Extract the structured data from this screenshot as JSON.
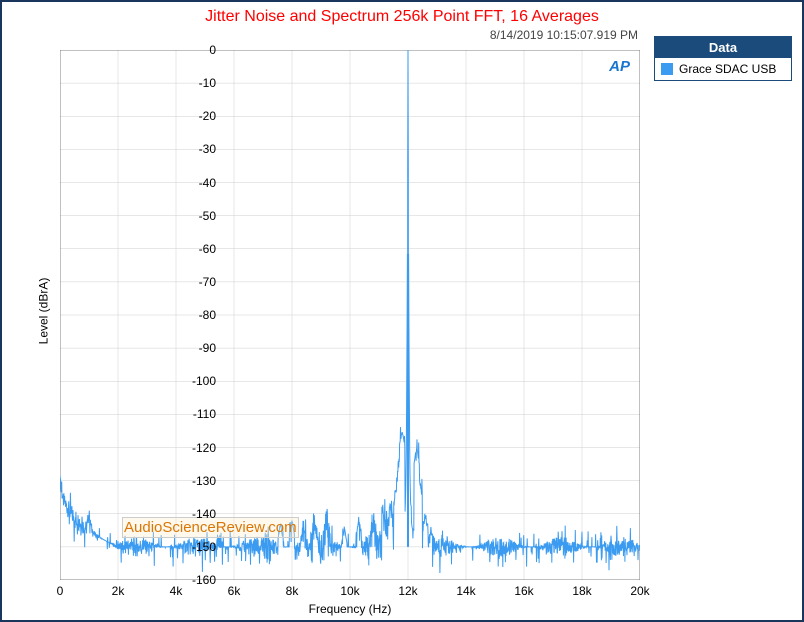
{
  "title": "Jitter Noise and Spectrum 256k Point FFT, 16 Averages",
  "timestamp": "8/14/2019 10:15:07.919 PM",
  "watermark": "AudioScienceReview.com",
  "ap_logo": "AP",
  "legend": {
    "header": "Data",
    "item": "Grace SDAC USB"
  },
  "axes": {
    "x_label": "Frequency (Hz)",
    "y_label": "Level (dBrA)"
  },
  "chart": {
    "type": "line",
    "xlim": [
      0,
      20000
    ],
    "xtick_step_hz": 2000,
    "ylim": [
      -160,
      0
    ],
    "ytick_step_db": 10,
    "xtick_labels": [
      "0",
      "2k",
      "4k",
      "6k",
      "8k",
      "10k",
      "12k",
      "14k",
      "16k",
      "18k",
      "20k"
    ],
    "ytick_labels": [
      "0",
      "-10",
      "-20",
      "-30",
      "-40",
      "-50",
      "-60",
      "-70",
      "-80",
      "-90",
      "-100",
      "-110",
      "-120",
      "-130",
      "-140",
      "-150",
      "-160"
    ],
    "series_color": "#3b9bf0",
    "line_width": 1,
    "grid_color": "#cfcfcf",
    "border_color": "#808080",
    "background_color": "#ffffff",
    "font_family": "Arial",
    "tick_fontsize": 12,
    "title_fontsize": 16,
    "title_color": "#ff0000",
    "noise_floor_db": -150,
    "noise_jitter_db": 6,
    "low_freq_rise": {
      "start_db": -127,
      "end_db": -150,
      "end_hz": 2000
    },
    "tone": {
      "freq_hz": 12000,
      "level_db": 0,
      "skirt_half_width_hz": 300,
      "skirt_base_db": -145
    },
    "bumps_db": [
      [
        1000,
        -140
      ],
      [
        1060,
        -143
      ],
      [
        7600,
        -143
      ],
      [
        8000,
        -142
      ],
      [
        8400,
        -143
      ],
      [
        8800,
        -141
      ],
      [
        9200,
        -142
      ],
      [
        9800,
        -144
      ],
      [
        10300,
        -142
      ],
      [
        10800,
        -143
      ],
      [
        11200,
        -140
      ],
      [
        11400,
        -138
      ],
      [
        11600,
        -132
      ],
      [
        11700,
        -125
      ],
      [
        11800,
        -115
      ],
      [
        12300,
        -120
      ],
      [
        12400,
        -130
      ],
      [
        12600,
        -140
      ],
      [
        12800,
        -145
      ],
      [
        13200,
        -147
      ]
    ]
  }
}
